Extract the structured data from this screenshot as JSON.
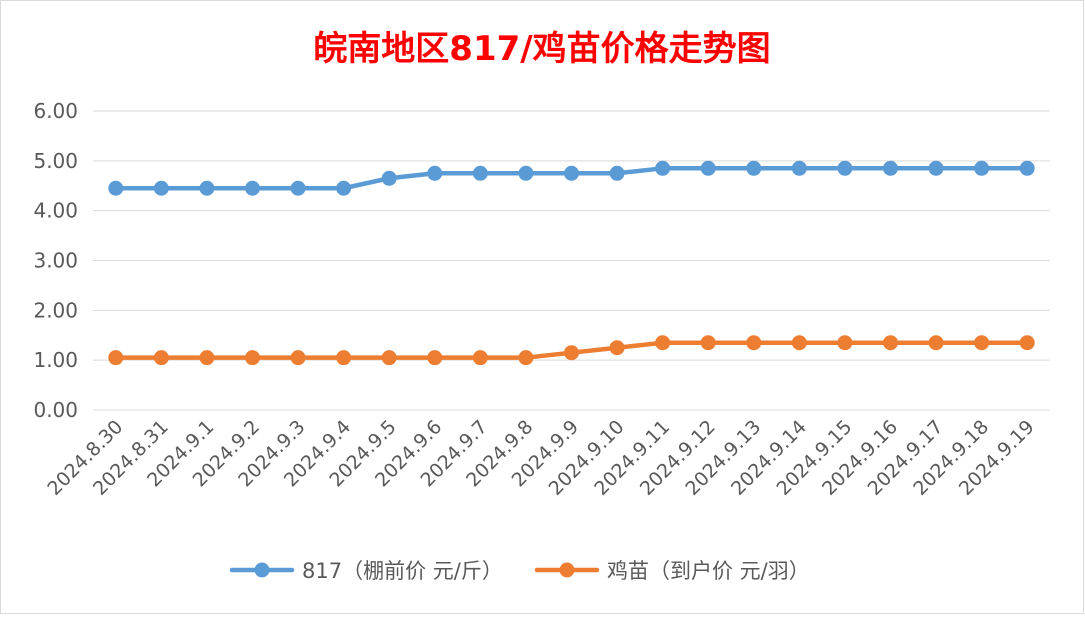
{
  "chart_data": {
    "type": "line",
    "title": "皖南地区817/鸡苗价格走势图",
    "xlabel": "",
    "ylabel": "",
    "categories": [
      "2024.8.30",
      "2024.8.31",
      "2024.9.1",
      "2024.9.2",
      "2024.9.3",
      "2024.9.4",
      "2024.9.5",
      "2024.9.6",
      "2024.9.7",
      "2024.9.8",
      "2024.9.9",
      "2024.9.10",
      "2024.9.11",
      "2024.9.12",
      "2024.9.13",
      "2024.9.14",
      "2024.9.15",
      "2024.9.16",
      "2024.9.17",
      "2024.9.18",
      "2024.9.19"
    ],
    "series": [
      {
        "name": "817（棚前价 元/斤）",
        "color": "#5B9BD5",
        "values": [
          4.45,
          4.45,
          4.45,
          4.45,
          4.45,
          4.45,
          4.65,
          4.75,
          4.75,
          4.75,
          4.75,
          4.75,
          4.85,
          4.85,
          4.85,
          4.85,
          4.85,
          4.85,
          4.85,
          4.85,
          4.85
        ]
      },
      {
        "name": "鸡苗（到户价 元/羽）",
        "color": "#ED7D31",
        "values": [
          1.05,
          1.05,
          1.05,
          1.05,
          1.05,
          1.05,
          1.05,
          1.05,
          1.05,
          1.05,
          1.15,
          1.25,
          1.35,
          1.35,
          1.35,
          1.35,
          1.35,
          1.35,
          1.35,
          1.35,
          1.35
        ]
      }
    ],
    "yticks": [
      "0.00",
      "1.00",
      "2.00",
      "3.00",
      "4.00",
      "5.00",
      "6.00"
    ],
    "ylim": [
      0,
      6
    ],
    "grid": true,
    "legend_position": "bottom",
    "title_color": "#FF0000"
  }
}
